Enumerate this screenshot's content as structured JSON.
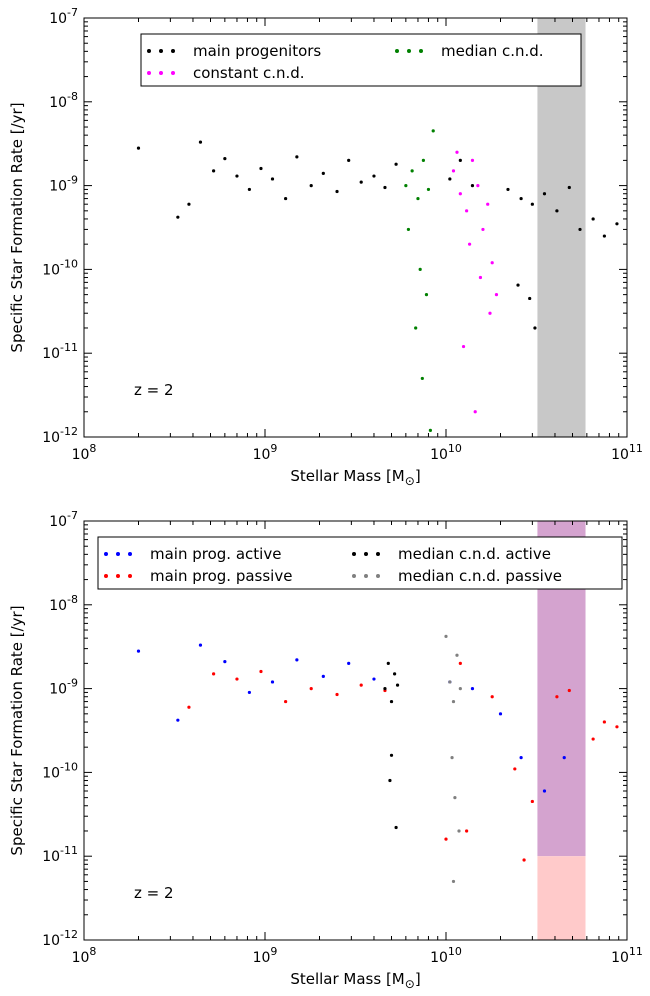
{
  "chart_data": [
    {
      "type": "scatter",
      "xlabel": "Stellar Mass [M",
      "xlabel_sub": "⊙",
      "xlabel_close": "]",
      "ylabel": "Specific Star Formation Rate [/yr]",
      "xscale": "log",
      "yscale": "log",
      "xlim": [
        100000000.0,
        100000000000.0
      ],
      "ylim": [
        1e-12,
        1e-07
      ],
      "x_tick_labels": [
        "10^8",
        "10^9",
        "10^10",
        "10^11"
      ],
      "y_tick_labels": [
        "10^-12",
        "10^-11",
        "10^-10",
        "10^-9",
        "10^-8",
        "10^-7"
      ],
      "annotation": "z = 2",
      "legend_position": "top",
      "bands": [
        {
          "x": [
            32000000000.0,
            59000000000.0
          ],
          "y": [
            1e-12,
            1e-07
          ],
          "color": "#c8c8c8"
        }
      ],
      "series": [
        {
          "name": "main progenitors",
          "color": "#000000",
          "x": [
            200000000.0,
            330000000.0,
            380000000.0,
            440000000.0,
            520000000.0,
            600000000.0,
            700000000.0,
            820000000.0,
            950000000.0,
            1100000000.0,
            1300000000.0,
            1500000000.0,
            1800000000.0,
            2100000000.0,
            2500000000.0,
            2900000000.0,
            3400000000.0,
            4000000000.0,
            4600000000.0,
            5300000000.0,
            10500000000.0,
            12000000000.0,
            14000000000.0,
            22000000000.0,
            26000000000.0,
            30000000000.0,
            35000000000.0,
            41000000000.0,
            48000000000.0,
            55000000000.0,
            65000000000.0,
            75000000000.0,
            88000000000.0,
            29000000000.0,
            31000000000.0,
            25000000000.0
          ],
          "y": [
            2.8e-09,
            4.2e-10,
            6e-10,
            3.3e-09,
            1.5e-09,
            2.1e-09,
            1.3e-09,
            9e-10,
            1.6e-09,
            1.2e-09,
            7e-10,
            2.2e-09,
            1e-09,
            1.4e-09,
            8.5e-10,
            2e-09,
            1.1e-09,
            1.3e-09,
            9.5e-10,
            1.8e-09,
            1.2e-09,
            2e-09,
            1e-09,
            9e-10,
            7e-10,
            6e-10,
            8e-10,
            5e-10,
            9.5e-10,
            3e-10,
            4e-10,
            2.5e-10,
            3.5e-10,
            4.5e-11,
            2e-11,
            6.5e-11
          ]
        },
        {
          "name": "constant c.n.d.",
          "color": "#ff00ff",
          "x": [
            11000000000.0,
            12000000000.0,
            13000000000.0,
            14000000000.0,
            15000000000.0,
            16000000000.0,
            17000000000.0,
            18000000000.0,
            19000000000.0,
            11500000000.0,
            13500000000.0,
            15500000000.0,
            17500000000.0,
            12500000000.0,
            14500000000.0
          ],
          "y": [
            1.5e-09,
            8e-10,
            5e-10,
            2e-09,
            1e-09,
            3e-10,
            6e-10,
            1.2e-10,
            5e-11,
            2.5e-09,
            2e-10,
            8e-11,
            3e-11,
            1.2e-11,
            2e-12
          ]
        },
        {
          "name": "median c.n.d.",
          "color": "#008000",
          "x": [
            6000000000.0,
            6500000000.0,
            7000000000.0,
            7500000000.0,
            8000000000.0,
            8500000000.0,
            6200000000.0,
            7200000000.0,
            7800000000.0,
            6800000000.0,
            7400000000.0,
            8200000000.0
          ],
          "y": [
            1e-09,
            1.5e-09,
            7e-10,
            2e-09,
            9e-10,
            4.5e-09,
            3e-10,
            1e-10,
            5e-11,
            2e-11,
            5e-12,
            1.2e-12
          ]
        }
      ]
    },
    {
      "type": "scatter",
      "xlabel": "Stellar Mass [M",
      "xlabel_sub": "⊙",
      "xlabel_close": "]",
      "ylabel": "Specific Star Formation Rate [/yr]",
      "xscale": "log",
      "yscale": "log",
      "xlim": [
        100000000.0,
        100000000000.0
      ],
      "ylim": [
        1e-12,
        1e-07
      ],
      "x_tick_labels": [
        "10^8",
        "10^9",
        "10^10",
        "10^11"
      ],
      "y_tick_labels": [
        "10^-12",
        "10^-11",
        "10^-10",
        "10^-9",
        "10^-8",
        "10^-7"
      ],
      "annotation": "z = 2",
      "legend_position": "top",
      "bands": [
        {
          "x": [
            32000000000.0,
            59000000000.0
          ],
          "y": [
            1e-11,
            1e-07
          ],
          "color": "#d4a3cf"
        },
        {
          "x": [
            32000000000.0,
            59000000000.0
          ],
          "y": [
            1e-12,
            1e-11
          ],
          "color": "#ffcaca"
        }
      ],
      "series": [
        {
          "name": "main prog. active",
          "color": "#0000ff",
          "x": [
            200000000.0,
            330000000.0,
            440000000.0,
            600000000.0,
            820000000.0,
            1100000000.0,
            1500000000.0,
            2100000000.0,
            2900000000.0,
            4000000000.0,
            10500000000.0,
            14000000000.0,
            20000000000.0,
            26000000000.0,
            35000000000.0,
            45000000000.0
          ],
          "y": [
            2.8e-09,
            4.2e-10,
            3.3e-09,
            2.1e-09,
            9e-10,
            1.2e-09,
            2.2e-09,
            1.4e-09,
            2e-09,
            1.3e-09,
            1.2e-09,
            1e-09,
            5e-10,
            1.5e-10,
            6e-11,
            1.5e-10
          ]
        },
        {
          "name": "main prog. passive",
          "color": "#ff0000",
          "x": [
            380000000.0,
            520000000.0,
            700000000.0,
            950000000.0,
            1300000000.0,
            1800000000.0,
            2500000000.0,
            3400000000.0,
            4600000000.0,
            12000000000.0,
            18000000000.0,
            24000000000.0,
            30000000000.0,
            41000000000.0,
            48000000000.0,
            65000000000.0,
            75000000000.0,
            88000000000.0,
            10000000000.0,
            13000000000.0,
            27000000000.0
          ],
          "y": [
            6e-10,
            1.5e-09,
            1.3e-09,
            1.6e-09,
            7e-10,
            1e-09,
            8.5e-10,
            1.1e-09,
            9.5e-10,
            2e-09,
            8e-10,
            1.1e-10,
            4.5e-11,
            8e-10,
            9.5e-10,
            2.5e-10,
            4e-10,
            3.5e-10,
            1.6e-11,
            2e-11,
            9e-12
          ]
        },
        {
          "name": "median c.n.d. active",
          "color": "#000000",
          "x": [
            4600000000.0,
            4800000000.0,
            5000000000.0,
            5200000000.0,
            5400000000.0,
            5000000000.0,
            5300000000.0,
            4900000000.0
          ],
          "y": [
            1e-09,
            2e-09,
            7e-10,
            1.5e-09,
            1.1e-09,
            1.6e-10,
            2.2e-11,
            8e-11
          ]
        },
        {
          "name": "median c.n.d. passive",
          "color": "#808080",
          "x": [
            10000000000.0,
            10500000000.0,
            11000000000.0,
            11500000000.0,
            12000000000.0,
            10800000000.0,
            11200000000.0,
            11800000000.0,
            11000000000.0
          ],
          "y": [
            4.2e-09,
            1.2e-09,
            7e-10,
            2.5e-09,
            1e-09,
            1.5e-10,
            5e-11,
            2e-11,
            5e-12
          ]
        }
      ]
    }
  ]
}
